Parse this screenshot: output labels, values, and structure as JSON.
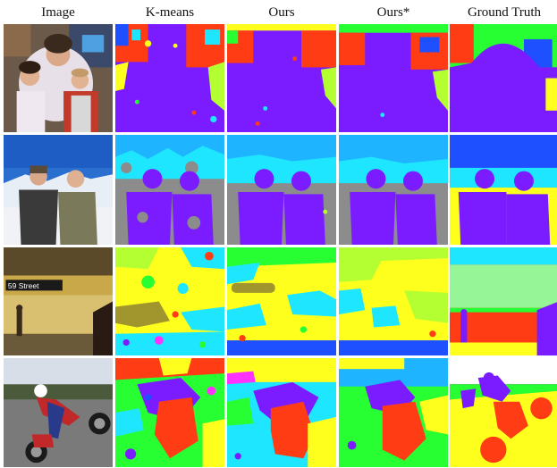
{
  "columns": [
    "Image",
    "K-means",
    "Ours",
    "Ours*",
    "Ground Truth"
  ],
  "palette": {
    "purple": "#7a1cff",
    "red": "#ff3c14",
    "yellow": "#ffff1e",
    "cyan": "#1ee6ff",
    "blue": "#1e50ff",
    "green": "#28ff32",
    "lime": "#b4ff32",
    "gray": "#8c8c8c",
    "olive": "#a0962d",
    "magenta": "#ff32ff",
    "black": "#0a0a0a",
    "lightgreen": "#96f596",
    "skyblue": "#1eb4ff"
  },
  "rows": [
    {
      "scene": "family-indoor-photo",
      "methods": [
        "k-means",
        "ours",
        "ours-star",
        "ground-truth"
      ]
    },
    {
      "scene": "two-men-snow-photo",
      "methods": [
        "k-means",
        "ours",
        "ours-star",
        "ground-truth"
      ]
    },
    {
      "scene": "subway-station-photo",
      "methods": [
        "k-means",
        "ours",
        "ours-star",
        "ground-truth"
      ]
    },
    {
      "scene": "motorcycle-stunt-photo",
      "methods": [
        "k-means",
        "ours",
        "ours-star",
        "ground-truth"
      ]
    }
  ]
}
